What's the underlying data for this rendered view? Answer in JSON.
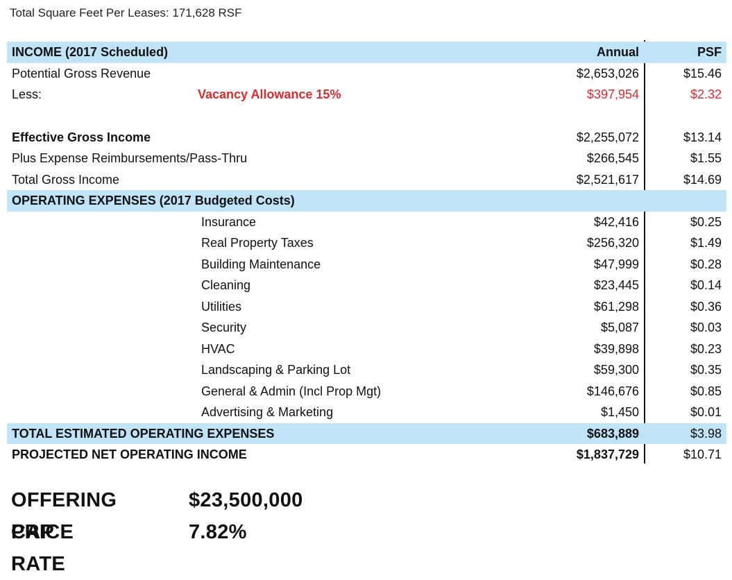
{
  "header": {
    "total_sqft": "Total Square Feet Per Leases: 171,628 RSF"
  },
  "columns": {
    "annual": "Annual",
    "psf": "PSF"
  },
  "income": {
    "title": "INCOME (2017 Scheduled)",
    "potential_gross": {
      "label": "Potential Gross Revenue",
      "annual": "$2,653,026",
      "psf": "$15.46"
    },
    "vacancy": {
      "label": "Less:",
      "sub": "Vacancy Allowance 15%",
      "annual": "$397,954",
      "psf": "$2.32"
    },
    "effective_gross": {
      "label": "Effective Gross Income",
      "annual": "$2,255,072",
      "psf": "$13.14"
    },
    "reimbursements": {
      "label": "Plus Expense Reimbursements/Pass-Thru",
      "annual": "$266,545",
      "psf": "$1.55"
    },
    "total_gross": {
      "label": "Total Gross Income",
      "annual": "$2,521,617",
      "psf": "$14.69"
    }
  },
  "expenses": {
    "title": "OPERATING EXPENSES (2017 Budgeted Costs)",
    "items": [
      {
        "label": "Insurance",
        "annual": "$42,416",
        "psf": "$0.25"
      },
      {
        "label": "Real Property Taxes",
        "annual": "$256,320",
        "psf": "$1.49"
      },
      {
        "label": "Building Maintenance",
        "annual": "$47,999",
        "psf": "$0.28"
      },
      {
        "label": "Cleaning",
        "annual": "$23,445",
        "psf": "$0.14"
      },
      {
        "label": "Utilities",
        "annual": "$61,298",
        "psf": "$0.36"
      },
      {
        "label": "Security",
        "annual": "$5,087",
        "psf": "$0.03"
      },
      {
        "label": "HVAC",
        "annual": "$39,898",
        "psf": "$0.23"
      },
      {
        "label": "Landscaping & Parking Lot",
        "annual": "$59,300",
        "psf": "$0.35"
      },
      {
        "label": "General & Admin (Incl Prop Mgt)",
        "annual": "$146,676",
        "psf": "$0.85"
      },
      {
        "label": "Advertising & Marketing",
        "annual": "$1,450",
        "psf": "$0.01"
      }
    ],
    "total": {
      "label": "TOTAL ESTIMATED OPERATING EXPENSES",
      "annual": "$683,889",
      "psf": "$3.98"
    }
  },
  "noi": {
    "label": "PROJECTED NET OPERATING INCOME",
    "annual": "$1,837,729",
    "psf": "$10.71"
  },
  "offering": {
    "price_label": "OFFERING PRICE",
    "price": "$23,500,000",
    "cap_label": "CAP RATE",
    "cap": "7.82%"
  },
  "colors": {
    "band": "#bfe3f7",
    "accent_red": "#d32f2f"
  }
}
